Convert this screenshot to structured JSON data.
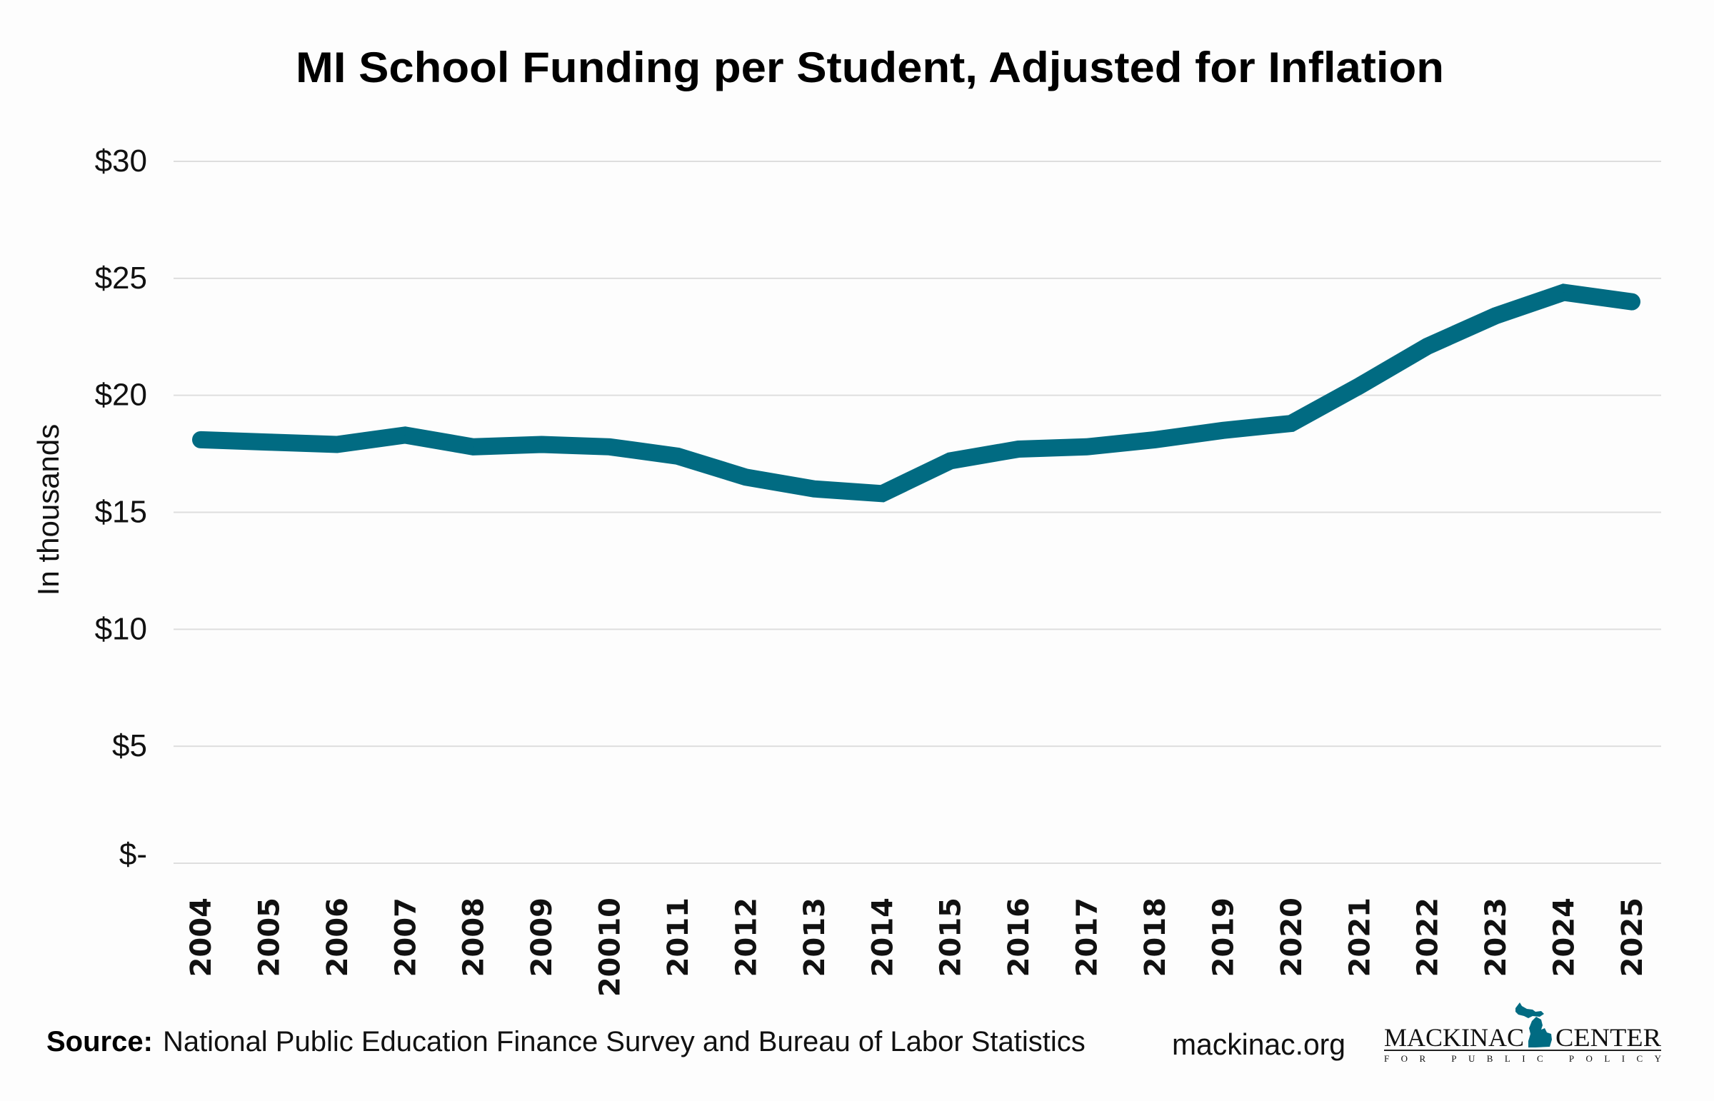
{
  "chart_data": {
    "type": "line",
    "title": "MI School Funding per Student, Adjusted for Inflation",
    "xlabel": "",
    "ylabel": "In thousands",
    "ylim": [
      0,
      30
    ],
    "yticks": [
      0,
      5,
      10,
      15,
      20,
      25,
      30
    ],
    "ytick_labels": [
      "$-",
      "$5",
      "$10",
      "$15",
      "$20",
      "$25",
      "$30"
    ],
    "grid": true,
    "legend": "none",
    "categories": [
      "2004",
      "2005",
      "2006",
      "2007",
      "2008",
      "2009",
      "20010",
      "2011",
      "2012",
      "2013",
      "2014",
      "2015",
      "2016",
      "2017",
      "2018",
      "2019",
      "2020",
      "2021",
      "2022",
      "2023",
      "2024",
      "2025"
    ],
    "series": [
      {
        "name": "Funding per student (thousands, inflation-adjusted)",
        "color": "#016b82",
        "values": [
          18.1,
          18.0,
          17.9,
          18.3,
          17.8,
          17.9,
          17.8,
          17.4,
          16.5,
          16.0,
          15.8,
          17.2,
          17.7,
          17.8,
          18.1,
          18.5,
          18.8,
          20.4,
          22.1,
          23.4,
          24.4,
          24.0
        ]
      }
    ]
  },
  "footer": {
    "source_label": "Source:",
    "source_text": "National Public Education Finance Survey and Bureau of Labor Statistics",
    "website": "mackinac.org"
  },
  "logo": {
    "name_left": "MACKINAC",
    "name_right": "CENTER",
    "tagline": "FOR PUBLIC POLICY",
    "color": "#016b82",
    "icon": "michigan-map-icon"
  }
}
